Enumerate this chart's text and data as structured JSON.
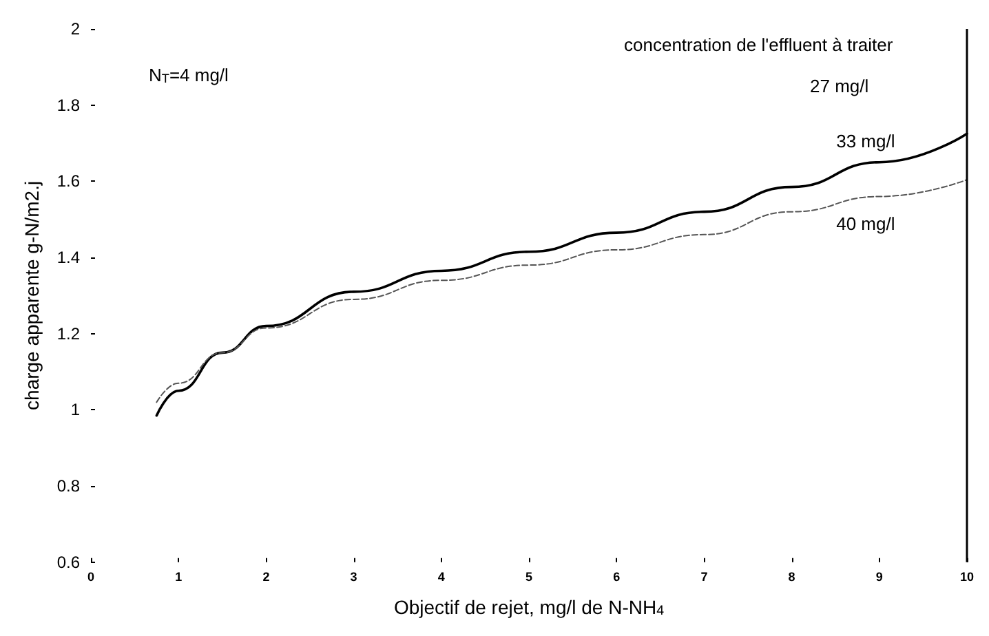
{
  "chart_data": {
    "type": "line",
    "xlabel": "Objectif de rejet, mg/l de N-NH$_{4}$",
    "ylabel": "charge apparente g-N/m2.j",
    "x": [
      0.75,
      1,
      1.5,
      2,
      3,
      4,
      5,
      6,
      7,
      8,
      9,
      10
    ],
    "series": [
      {
        "name": "33 mg/l",
        "color": "#000000",
        "line_style": "solid",
        "values": [
          0.985,
          1.05,
          1.15,
          1.22,
          1.31,
          1.365,
          1.415,
          1.465,
          1.52,
          1.585,
          1.65,
          1.725
        ]
      },
      {
        "name": "40 mg/l",
        "color": "#555555",
        "line_style": "dashed",
        "values": [
          1.02,
          1.07,
          1.15,
          1.215,
          1.29,
          1.34,
          1.38,
          1.42,
          1.46,
          1.52,
          1.56,
          1.604
        ]
      }
    ],
    "xlim": [
      0,
      10
    ],
    "xticks": [
      0,
      1,
      2,
      3,
      4,
      5,
      6,
      7,
      8,
      9,
      10
    ],
    "ylim": [
      0.6,
      2
    ],
    "yticks": [
      0.6,
      0.8,
      1,
      1.2,
      1.4,
      1.6,
      1.8,
      2
    ],
    "ref_lines": [
      {
        "axis": "x",
        "value": 10,
        "color": "#000000"
      }
    ],
    "annotations": [
      "N$_{T}$=4 mg/l",
      "concentration de l'effluent à traiter",
      "27 mg/l"
    ],
    "grid": false,
    "legend": false,
    "marker": "none"
  }
}
